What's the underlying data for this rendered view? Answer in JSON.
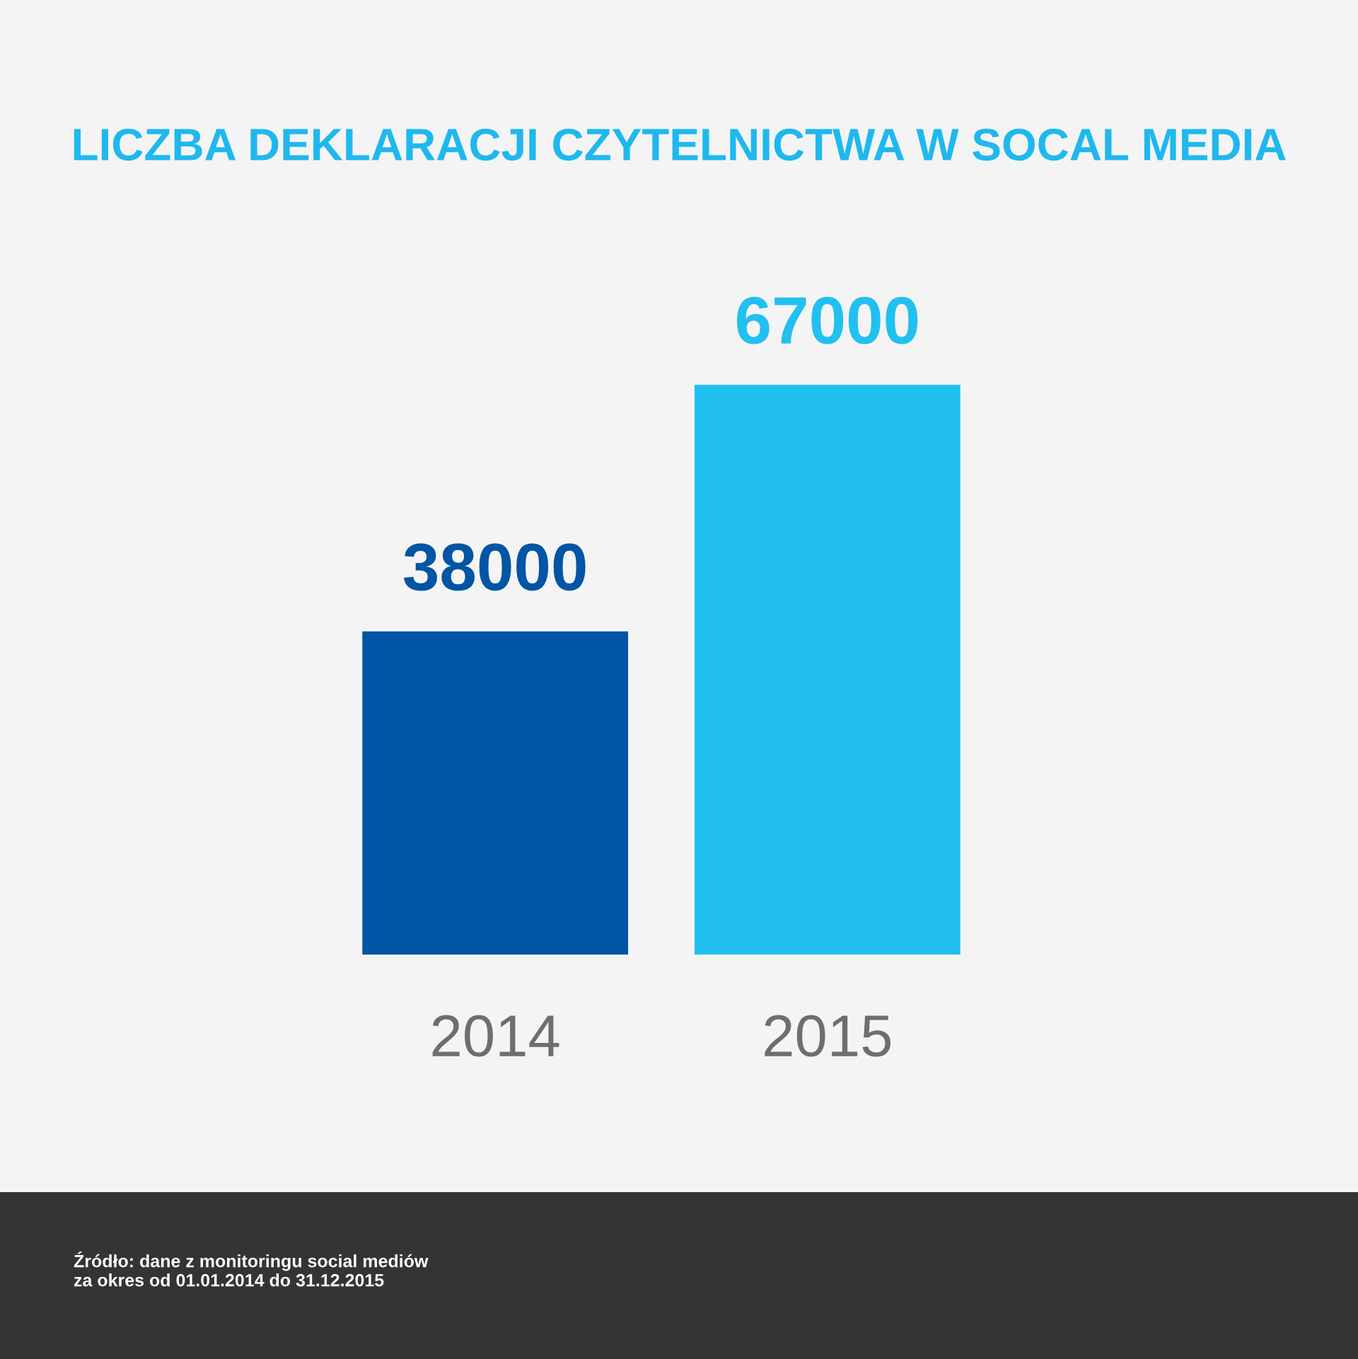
{
  "chart_data": {
    "type": "bar",
    "title": "LICZBA DEKLARACJI CZYTELNICTWA W SOCAL MEDIA",
    "categories": [
      "2014",
      "2015"
    ],
    "values": [
      38000,
      67000
    ],
    "colors": [
      "#0055a5",
      "#22c0f0"
    ],
    "data_labels": true,
    "annotations": [
      "Źródło: dane z monitoringu social mediów\nza okres od 01.01.2014 do 31.12.2015"
    ]
  }
}
